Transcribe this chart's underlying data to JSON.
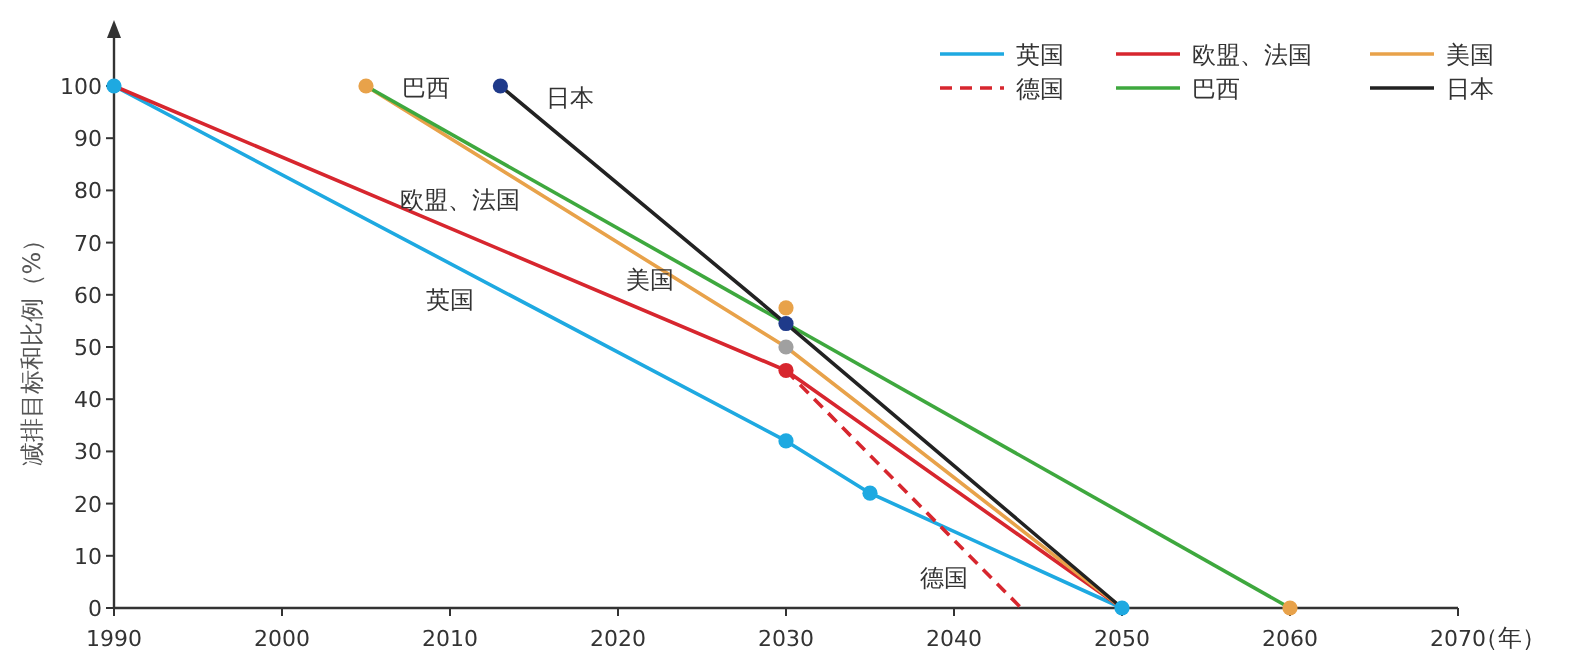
{
  "chart_data": {
    "type": "line",
    "ylabel": "减排目标和比例（%）",
    "xlabel": "（年）",
    "xlim": [
      1990,
      2070
    ],
    "ylim": [
      0,
      100
    ],
    "xticks": [
      1990,
      2000,
      2010,
      2020,
      2030,
      2040,
      2050,
      2060,
      2070
    ],
    "yticks": [
      0,
      10,
      20,
      30,
      40,
      50,
      60,
      70,
      80,
      90,
      100
    ],
    "grid": false,
    "legend": "top right",
    "series": [
      {
        "name": "英国",
        "color": "#1ea9e1",
        "x": [
          1990,
          2030,
          2035,
          2050
        ],
        "values": [
          100,
          32,
          22,
          0
        ]
      },
      {
        "name": "欧盟、法国",
        "color": "#d7262e",
        "x": [
          1990,
          2030,
          2050
        ],
        "values": [
          100,
          45.5,
          0
        ]
      },
      {
        "name": "美国",
        "color": "#e8a24a",
        "x": [
          2005,
          2030,
          2050
        ],
        "values": [
          100,
          50,
          0
        ]
      },
      {
        "name": "德国",
        "color": "#d7262e",
        "line_style": "dashed",
        "x": [
          2030,
          2044
        ],
        "values": [
          45.5,
          0
        ]
      },
      {
        "name": "巴西",
        "color": "#3ea83e",
        "x": [
          2005,
          2060
        ],
        "values": [
          100,
          0
        ]
      },
      {
        "name": "日本",
        "color": "#222222",
        "x": [
          2013,
          2030,
          2050
        ],
        "values": [
          100,
          54.5,
          0
        ]
      },
      {
        "type": "scatter",
        "color": "#1ea9e1",
        "x": [
          1990,
          2030,
          2035,
          2050
        ],
        "values": [
          100,
          32,
          22,
          0
        ]
      },
      {
        "type": "scatter",
        "color": "#d7262e",
        "x": [
          2030
        ],
        "values": [
          45.5
        ]
      },
      {
        "type": "scatter",
        "color": "#a0a0a0",
        "x": [
          2030
        ],
        "values": [
          50
        ]
      },
      {
        "type": "scatter",
        "color": "#e8a24a",
        "x": [
          2005,
          2030,
          2060
        ],
        "values": [
          100,
          57.5,
          0
        ]
      },
      {
        "type": "scatter",
        "color": "#1f3a8a",
        "x": [
          2013,
          2030
        ],
        "values": [
          100,
          54.5
        ]
      }
    ],
    "annotations": [
      "巴西",
      "日本",
      "欧盟、法国",
      "美国",
      "英国",
      "德国"
    ]
  }
}
